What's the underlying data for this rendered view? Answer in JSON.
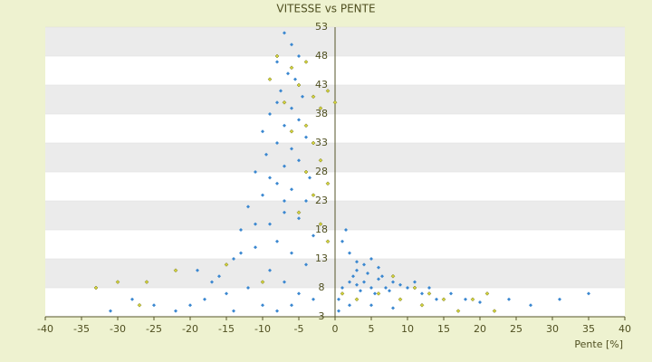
{
  "chart_data": {
    "type": "scatter",
    "title": "VITESSE vs PENTE",
    "x_label": "Pente [%]",
    "xlim": [
      -40,
      40
    ],
    "xticks": [
      -40,
      -35,
      -30,
      -25,
      -20,
      -15,
      -10,
      -5,
      0,
      5,
      10,
      15,
      20,
      25,
      30,
      35,
      40
    ],
    "ylim": [
      3,
      53
    ],
    "yticks": [
      3,
      8,
      13,
      18,
      23,
      28,
      33,
      38,
      43,
      48,
      53
    ],
    "grid": "bands",
    "series": [
      {
        "color": "#3a87d0",
        "x": [
          -7,
          -6,
          -5,
          -8,
          -6.5,
          -5.5,
          -7.5,
          -4.5,
          -8,
          -6,
          -9,
          -5,
          -7,
          -10,
          -4,
          -8,
          -6,
          -9.5,
          -5,
          -7,
          -11,
          -3.5,
          -8,
          -6,
          -10,
          -4,
          -12,
          -7,
          -5,
          -9,
          -13,
          -3,
          -8,
          -11,
          -6,
          -14,
          -4,
          -9,
          -16,
          -7,
          -12,
          -5,
          -18,
          -10,
          -3,
          -20,
          -15,
          -8,
          -22,
          -25,
          -28,
          -31,
          -14,
          -6,
          -17,
          -19,
          -13,
          -11,
          -7,
          -9,
          1,
          2,
          3,
          4,
          5,
          6,
          7,
          8,
          9,
          10,
          2.5,
          3.5,
          4.5,
          5.5,
          6.5,
          7.5,
          3,
          4,
          5,
          2,
          1,
          3,
          6,
          1.5,
          12,
          14,
          16,
          18,
          20,
          24,
          27,
          31,
          35,
          11,
          13,
          0.5,
          0.5,
          2,
          5,
          8
        ],
        "y": [
          52,
          50,
          48,
          47,
          45,
          44,
          42,
          41,
          40,
          39,
          38,
          37,
          36,
          35,
          34,
          33,
          32,
          31,
          30,
          29,
          28,
          27,
          26,
          25,
          24,
          23,
          22,
          21,
          20,
          19,
          18,
          17,
          16,
          15,
          14,
          13,
          12,
          11,
          10,
          9,
          8,
          7,
          6,
          5,
          6,
          5,
          7,
          4,
          4,
          5,
          6,
          4,
          4,
          5,
          9,
          11,
          14,
          19,
          23,
          27,
          8,
          9,
          8.5,
          9,
          8,
          9.5,
          8,
          9,
          8.5,
          8,
          10,
          7.5,
          10.5,
          7,
          10,
          7.5,
          11,
          12,
          13,
          14,
          16,
          12.5,
          11.5,
          18,
          7,
          6,
          7,
          6,
          5.5,
          6,
          5,
          6,
          7,
          9,
          8,
          4,
          6,
          5,
          5,
          4.5
        ]
      },
      {
        "color": "#d4d43a",
        "x": [
          -8,
          -6,
          -4,
          -9,
          -5,
          -3,
          -7,
          -2,
          -1,
          0,
          -4,
          -6,
          -3,
          -2,
          -4,
          -1,
          -3,
          -5,
          -2,
          -1,
          -22,
          -33,
          -30,
          -27,
          -15,
          3,
          6,
          9,
          11,
          13,
          15,
          19,
          21,
          22,
          12,
          1,
          8,
          17,
          -10,
          -26
        ],
        "y": [
          48,
          46,
          47,
          44,
          43,
          41,
          40,
          39,
          42,
          40,
          36,
          35,
          33,
          30,
          28,
          26,
          24,
          21,
          19,
          16,
          11,
          8,
          9,
          5,
          12,
          6,
          7,
          6,
          8,
          7,
          6,
          6,
          7,
          4,
          5,
          7,
          10,
          4,
          9,
          9
        ]
      }
    ]
  }
}
